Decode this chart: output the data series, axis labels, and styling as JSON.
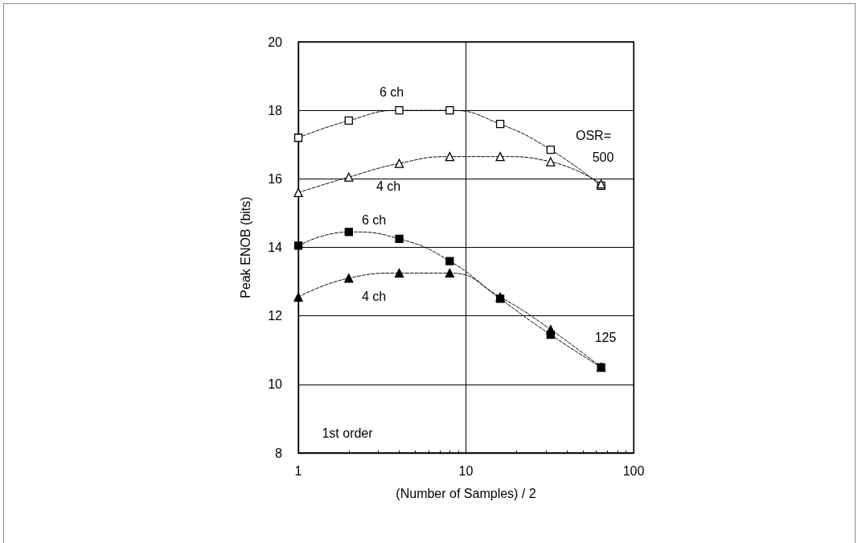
{
  "chart_data": {
    "type": "line",
    "xlabel": "(Number of Samples) / 2",
    "ylabel": "Peak ENOB (bits)",
    "x": [
      1,
      2,
      4,
      8,
      16,
      32,
      64
    ],
    "series": [
      {
        "color": "#ffffff",
        "marker": "square",
        "values": [
          17.2,
          17.7,
          18.0,
          18.0,
          17.6,
          16.85,
          15.8
        ]
      },
      {
        "color": "#ffffff",
        "marker": "triangle",
        "values": [
          15.6,
          16.05,
          16.45,
          16.65,
          16.65,
          16.5,
          15.85
        ]
      },
      {
        "color": "#000000",
        "marker": "square",
        "values": [
          14.05,
          14.45,
          14.25,
          13.6,
          12.5,
          11.45,
          10.5
        ]
      },
      {
        "color": "#000000",
        "marker": "triangle",
        "values": [
          12.55,
          13.1,
          13.25,
          13.25,
          12.55,
          11.6,
          10.5
        ]
      }
    ],
    "line_style": "dashed",
    "log": "x",
    "xlim": [
      1,
      100
    ],
    "xticks": [
      1,
      10,
      100
    ],
    "ylim": [
      8,
      20
    ],
    "yticks": [
      8,
      10,
      12,
      14,
      16,
      18,
      20
    ],
    "grid": true,
    "annotations": [
      "6 ch",
      "4 ch",
      "6 ch",
      "4 ch",
      "OSR=",
      "500",
      "125",
      "1st order"
    ]
  }
}
